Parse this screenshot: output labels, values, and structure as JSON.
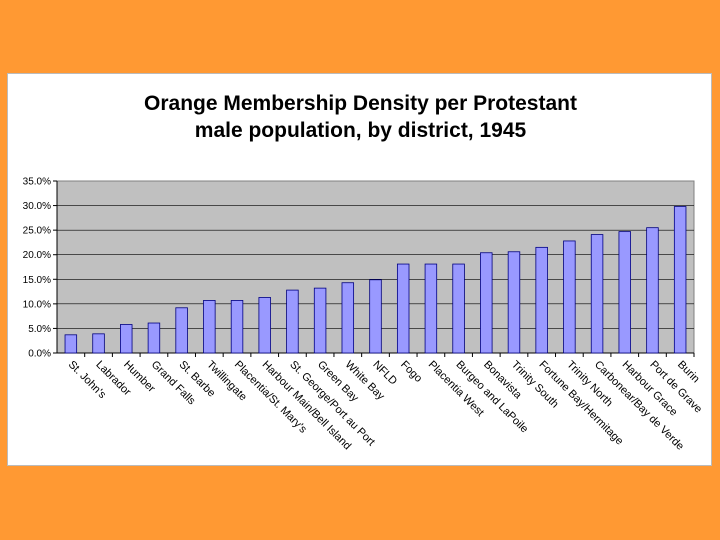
{
  "colors": {
    "background": "#FF9933",
    "plot_area": "#C0C0C0",
    "bar_fill": "#9999FF",
    "bar_stroke": "#000080"
  },
  "chart_data": {
    "type": "bar",
    "title": [
      "Orange Membership Density per Protestant",
      "male population, by district, 1945"
    ],
    "xlabel": "",
    "ylabel": "",
    "ylim": [
      0,
      35
    ],
    "grid": true,
    "legend": "none",
    "yticks": [
      "0.0%",
      "5.0%",
      "10.0%",
      "15.0%",
      "20.0%",
      "25.0%",
      "30.0%",
      "35.0%"
    ],
    "categories": [
      "St. John's",
      "Labrador",
      "Humber",
      "Grand Falls",
      "St. Barbe",
      "Twillingate",
      "Placentia/St. Mary's",
      "Harbour Main/Bell Island",
      "St. George/Port au Port",
      "Green Bay",
      "White Bay",
      "NFLD",
      "Fogo",
      "Placentia West",
      "Burgeo and LaPoile",
      "Bonavista",
      "Trinity South",
      "Fortune Bay/Hermitage",
      "Trinity North",
      "Carbonear/Bay de Verde",
      "Harbour Grace",
      "Port de Grave",
      "Burin"
    ],
    "values": [
      3.7,
      3.9,
      5.8,
      6.1,
      9.2,
      10.7,
      10.7,
      11.3,
      12.8,
      13.2,
      14.3,
      14.9,
      18.1,
      18.1,
      18.1,
      20.4,
      20.6,
      21.5,
      22.8,
      24.1,
      24.7,
      25.5,
      29.8
    ]
  }
}
